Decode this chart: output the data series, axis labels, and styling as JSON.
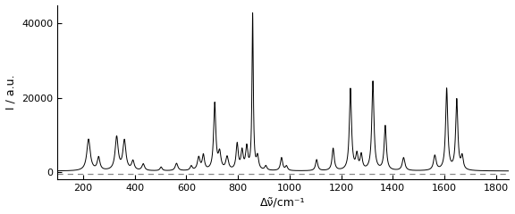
{
  "title": "",
  "xlabel": "Δν̃/cm⁻¹",
  "ylabel": "I / a.u.",
  "xlim": [
    100,
    1850
  ],
  "ylim": [
    -2000,
    45000
  ],
  "yticks": [
    0,
    20000,
    40000
  ],
  "xticks": [
    200,
    400,
    600,
    800,
    1000,
    1200,
    1400,
    1600,
    1800
  ],
  "dashed_line_y": -500,
  "figure_bg": "#ffffff",
  "line_color": "#000000",
  "dashed_color": "#888888",
  "linewidth": 0.7,
  "peak_data": [
    [
      221,
      8500,
      8
    ],
    [
      260,
      3500,
      6
    ],
    [
      330,
      9000,
      7
    ],
    [
      360,
      8000,
      7
    ],
    [
      393,
      2500,
      6
    ],
    [
      433,
      1800,
      6
    ],
    [
      502,
      1000,
      5
    ],
    [
      562,
      2000,
      6
    ],
    [
      619,
      1200,
      5
    ],
    [
      648,
      3500,
      6
    ],
    [
      666,
      4000,
      5
    ],
    [
      710,
      18000,
      5
    ],
    [
      729,
      4500,
      6
    ],
    [
      758,
      3500,
      6
    ],
    [
      797,
      7000,
      5
    ],
    [
      816,
      5000,
      5
    ],
    [
      834,
      6000,
      5
    ],
    [
      857,
      42000,
      3
    ],
    [
      876,
      3500,
      5
    ],
    [
      908,
      1200,
      5
    ],
    [
      969,
      3500,
      5
    ],
    [
      988,
      1200,
      5
    ],
    [
      1105,
      3000,
      5
    ],
    [
      1169,
      6000,
      5
    ],
    [
      1236,
      22000,
      5
    ],
    [
      1261,
      4000,
      5
    ],
    [
      1278,
      4000,
      5
    ],
    [
      1323,
      24000,
      5
    ],
    [
      1371,
      12000,
      5
    ],
    [
      1442,
      3500,
      6
    ],
    [
      1563,
      4000,
      6
    ],
    [
      1609,
      22000,
      5
    ],
    [
      1648,
      19000,
      5
    ],
    [
      1669,
      3500,
      5
    ]
  ]
}
